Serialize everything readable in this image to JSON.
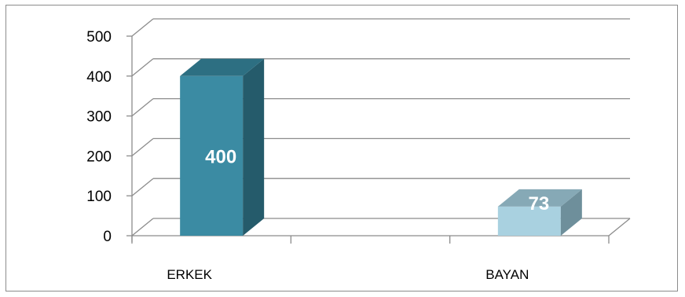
{
  "chart_data": {
    "type": "bar",
    "style": "3d-column",
    "categories": [
      "ERKEK",
      "BAYAN"
    ],
    "values": [
      400,
      73
    ],
    "data_labels": [
      "400",
      "73"
    ],
    "ylim": [
      0,
      500
    ],
    "yticks": [
      0,
      100,
      200,
      300,
      400,
      500
    ],
    "ytick_labels": [
      "0",
      "100",
      "200",
      "300",
      "400",
      "500"
    ],
    "grid": true,
    "legend": "none",
    "colors": {
      "ERKEK": {
        "front": "#3b8ba3",
        "side": "#255b6b",
        "top": "#2d6f82"
      },
      "BAYAN": {
        "front": "#a9d1e0",
        "side": "#6e8f9b",
        "top": "#86a9b6"
      },
      "grid": "#8c8c8c"
    }
  }
}
